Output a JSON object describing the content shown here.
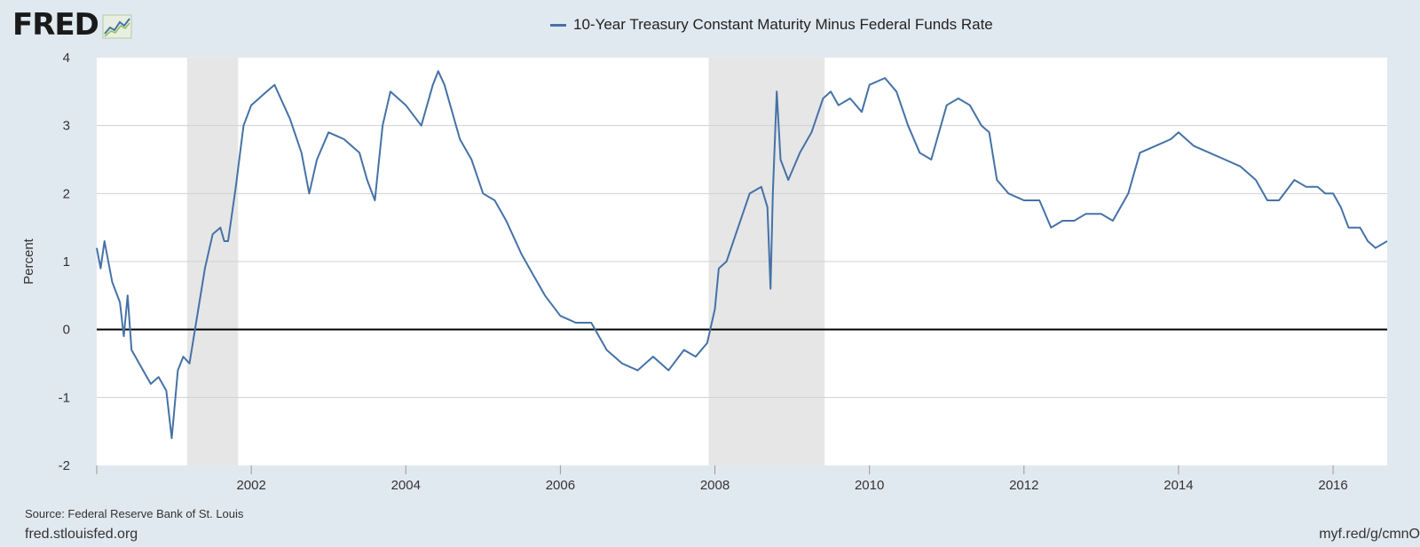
{
  "brand": {
    "logo_text": "FRED",
    "logo_icon": "trend-chart-icon"
  },
  "footer": {
    "source": "Source: Federal Reserve Bank of St. Louis",
    "site": "fred.stlouisfed.org",
    "shortlink": "myf.red/g/cmnO"
  },
  "colors": {
    "series": "#4572a7",
    "plot_background": "#ffffff",
    "page_background": "#e1e9f0",
    "recession_shading": "#e6e6e6",
    "zero_line": "#000000",
    "grid": "#d0d0d0"
  },
  "chart_data": {
    "type": "line",
    "title": "",
    "xlabel": "",
    "ylabel": "Percent",
    "ylim": [
      -2,
      4
    ],
    "xlim": [
      2000.0,
      2016.7
    ],
    "yticks": [
      -2,
      -1,
      0,
      1,
      2,
      3,
      4
    ],
    "ytick_labels": [
      "-2",
      "-1",
      "0",
      "1",
      "2",
      "3",
      "4"
    ],
    "xticks": [
      2002,
      2004,
      2006,
      2008,
      2010,
      2012,
      2014,
      2016
    ],
    "xtick_labels": [
      "2002",
      "2004",
      "2006",
      "2008",
      "2010",
      "2012",
      "2014",
      "2016"
    ],
    "grid": true,
    "legend_position": "top-center",
    "recessions": [
      [
        2001.17,
        2001.83
      ],
      [
        2007.92,
        2009.42
      ]
    ],
    "series": [
      {
        "name": "10-Year Treasury Constant Maturity Minus Federal Funds Rate",
        "x": [
          2000.0,
          2000.05,
          2000.1,
          2000.2,
          2000.3,
          2000.35,
          2000.4,
          2000.45,
          2000.5,
          2000.6,
          2000.7,
          2000.8,
          2000.9,
          2000.97,
          2001.05,
          2001.12,
          2001.2,
          2001.3,
          2001.4,
          2001.5,
          2001.6,
          2001.65,
          2001.7,
          2001.8,
          2001.9,
          2002.0,
          2002.2,
          2002.3,
          2002.5,
          2002.65,
          2002.75,
          2002.85,
          2003.0,
          2003.2,
          2003.4,
          2003.5,
          2003.6,
          2003.7,
          2003.8,
          2004.0,
          2004.2,
          2004.35,
          2004.42,
          2004.5,
          2004.6,
          2004.7,
          2004.85,
          2005.0,
          2005.15,
          2005.3,
          2005.5,
          2005.65,
          2005.8,
          2006.0,
          2006.2,
          2006.4,
          2006.6,
          2006.8,
          2007.0,
          2007.2,
          2007.4,
          2007.6,
          2007.75,
          2007.9,
          2008.0,
          2008.05,
          2008.15,
          2008.3,
          2008.45,
          2008.6,
          2008.68,
          2008.72,
          2008.75,
          2008.8,
          2008.85,
          2008.95,
          2009.1,
          2009.25,
          2009.4,
          2009.5,
          2009.6,
          2009.75,
          2009.9,
          2010.0,
          2010.2,
          2010.35,
          2010.5,
          2010.65,
          2010.8,
          2011.0,
          2011.15,
          2011.3,
          2011.45,
          2011.55,
          2011.65,
          2011.8,
          2012.0,
          2012.2,
          2012.35,
          2012.5,
          2012.65,
          2012.8,
          2013.0,
          2013.15,
          2013.35,
          2013.5,
          2013.7,
          2013.9,
          2014.0,
          2014.2,
          2014.4,
          2014.6,
          2014.8,
          2015.0,
          2015.15,
          2015.3,
          2015.5,
          2015.65,
          2015.8,
          2015.9,
          2016.0,
          2016.1,
          2016.2,
          2016.35,
          2016.45,
          2016.55,
          2016.7
        ],
        "values": [
          1.2,
          0.9,
          1.3,
          0.7,
          0.4,
          -0.1,
          0.5,
          -0.3,
          -0.4,
          -0.6,
          -0.8,
          -0.7,
          -0.9,
          -1.6,
          -0.6,
          -0.4,
          -0.5,
          0.2,
          0.9,
          1.4,
          1.5,
          1.3,
          1.3,
          2.1,
          3.0,
          3.3,
          3.5,
          3.6,
          3.1,
          2.6,
          2.0,
          2.5,
          2.9,
          2.8,
          2.6,
          2.2,
          1.9,
          3.0,
          3.5,
          3.3,
          3.0,
          3.6,
          3.8,
          3.6,
          3.2,
          2.8,
          2.5,
          2.0,
          1.9,
          1.6,
          1.1,
          0.8,
          0.5,
          0.2,
          0.1,
          0.1,
          -0.3,
          -0.5,
          -0.6,
          -0.4,
          -0.6,
          -0.3,
          -0.4,
          -0.2,
          0.3,
          0.9,
          1.0,
          1.5,
          2.0,
          2.1,
          1.8,
          0.6,
          2.0,
          3.5,
          2.5,
          2.2,
          2.6,
          2.9,
          3.4,
          3.5,
          3.3,
          3.4,
          3.2,
          3.6,
          3.7,
          3.5,
          3.0,
          2.6,
          2.5,
          3.3,
          3.4,
          3.3,
          3.0,
          2.9,
          2.2,
          2.0,
          1.9,
          1.9,
          1.5,
          1.6,
          1.6,
          1.7,
          1.7,
          1.6,
          2.0,
          2.6,
          2.7,
          2.8,
          2.9,
          2.7,
          2.6,
          2.5,
          2.4,
          2.2,
          1.9,
          1.9,
          2.2,
          2.1,
          2.1,
          2.0,
          2.0,
          1.8,
          1.5,
          1.5,
          1.3,
          1.2,
          1.3
        ]
      }
    ]
  }
}
